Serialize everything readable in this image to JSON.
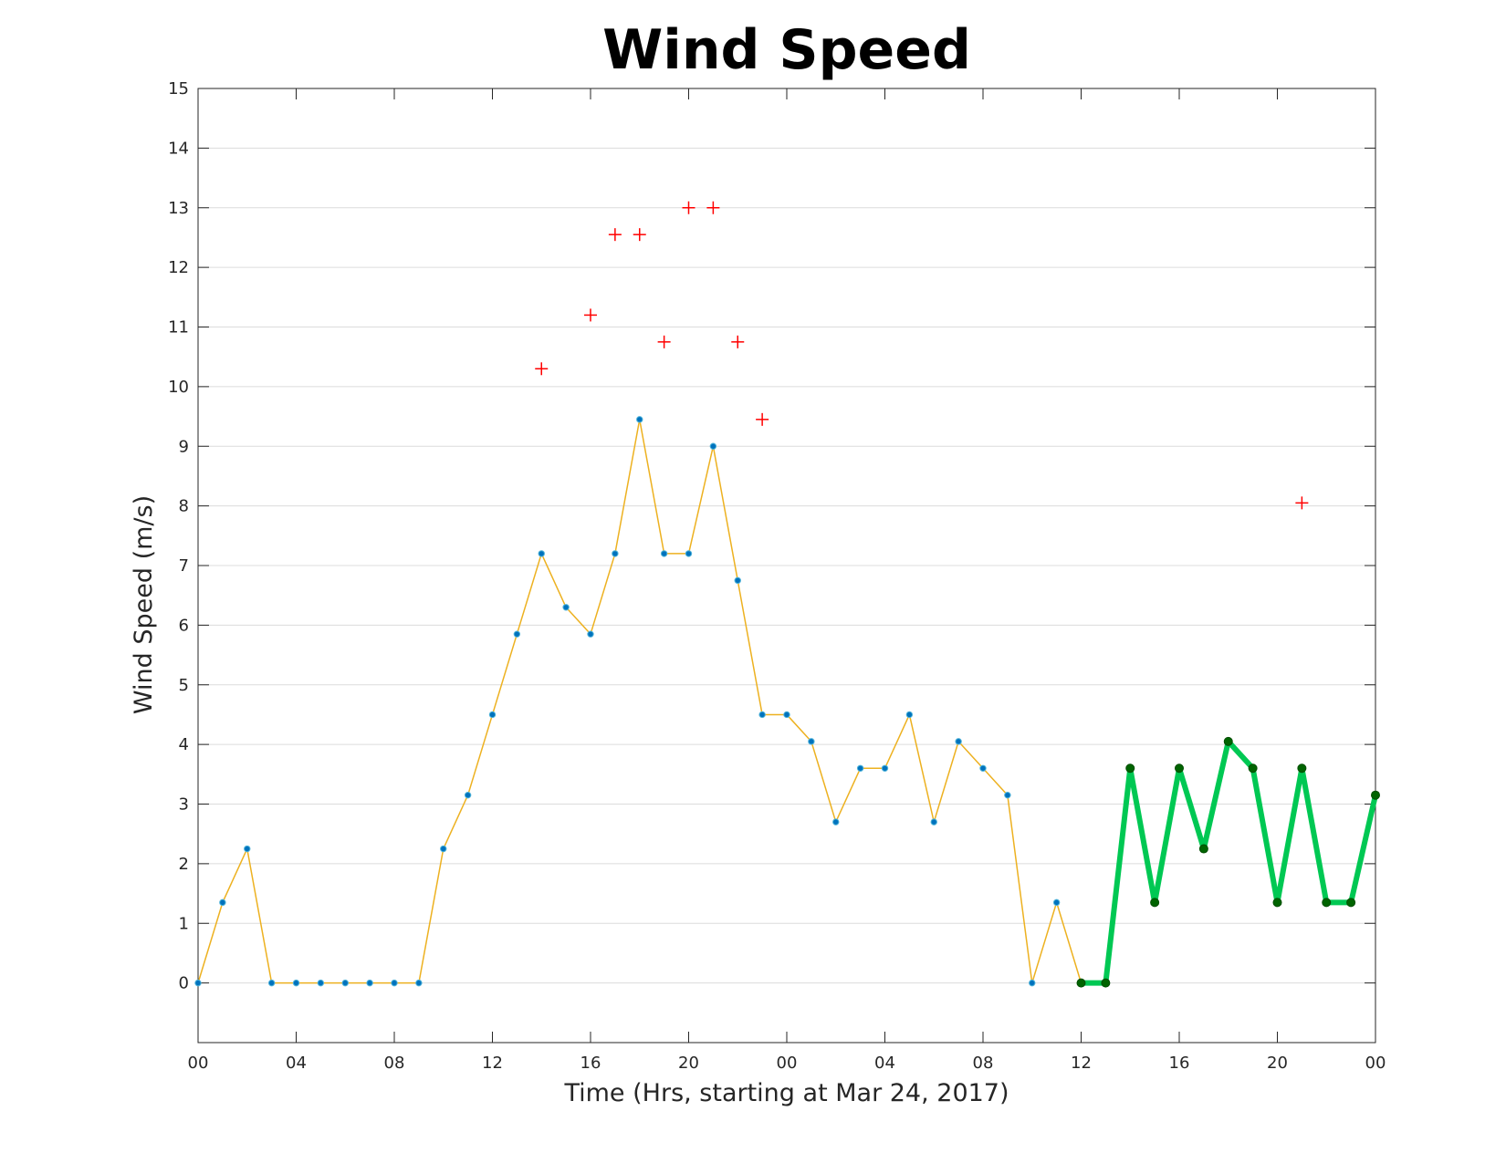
{
  "chart_data": {
    "type": "line",
    "title": "Wind Speed",
    "xlabel": "Time (Hrs, starting at Mar 24, 2017)",
    "ylabel": "Wind Speed (m/s)",
    "xlim": [
      0,
      48
    ],
    "ylim": [
      -1,
      15
    ],
    "grid": "horizontal",
    "x_tick_values": [
      0,
      4,
      8,
      12,
      16,
      20,
      24,
      28,
      32,
      36,
      40,
      44,
      48
    ],
    "x_tick_labels": [
      "00",
      "04",
      "08",
      "12",
      "16",
      "20",
      "00",
      "04",
      "08",
      "12",
      "16",
      "20",
      "00"
    ],
    "y_tick_values": [
      0,
      1,
      2,
      3,
      4,
      5,
      6,
      7,
      8,
      9,
      10,
      11,
      12,
      13,
      14,
      15
    ],
    "y_tick_labels": [
      "0",
      "1",
      "2",
      "3",
      "4",
      "5",
      "6",
      "7",
      "8",
      "9",
      "10",
      "11",
      "12",
      "13",
      "14",
      "15"
    ],
    "series": [
      {
        "kind": "line-markers",
        "line_color": "#EDB120",
        "marker_color": "#0072BD",
        "x": [
          0,
          1,
          2,
          3,
          4,
          5,
          6,
          7,
          8,
          9,
          10,
          11,
          12,
          13,
          14,
          15,
          16,
          17,
          18,
          19,
          20,
          21,
          22,
          23,
          24,
          25,
          26,
          27,
          28,
          29,
          30,
          31,
          32,
          33,
          34,
          35,
          36
        ],
        "y": [
          0,
          1.35,
          2.25,
          0,
          0,
          0,
          0,
          0,
          0,
          0,
          2.25,
          3.15,
          4.5,
          5.85,
          7.2,
          6.3,
          5.85,
          7.2,
          9.45,
          7.2,
          7.2,
          9,
          6.75,
          4.5,
          4.5,
          4.05,
          2.7,
          3.6,
          3.6,
          4.5,
          2.7,
          4.05,
          3.6,
          3.15,
          0,
          1.35,
          0
        ]
      },
      {
        "kind": "line-markers",
        "line_color": "#00C853",
        "marker_color": "#006400",
        "x": [
          36,
          37,
          38,
          39,
          40,
          41,
          42,
          43,
          44,
          45,
          46,
          47,
          48
        ],
        "y": [
          0,
          0,
          3.6,
          1.35,
          3.6,
          2.25,
          4.05,
          3.6,
          1.35,
          3.6,
          1.35,
          1.35,
          3.15
        ]
      },
      {
        "kind": "markers-plus",
        "marker_color": "#FF0000",
        "x": [
          14,
          16,
          17,
          18,
          19,
          20,
          21,
          22,
          23,
          45
        ],
        "y": [
          10.3,
          11.2,
          12.55,
          12.55,
          10.75,
          13,
          13,
          10.75,
          9.45,
          8.05
        ]
      }
    ]
  }
}
